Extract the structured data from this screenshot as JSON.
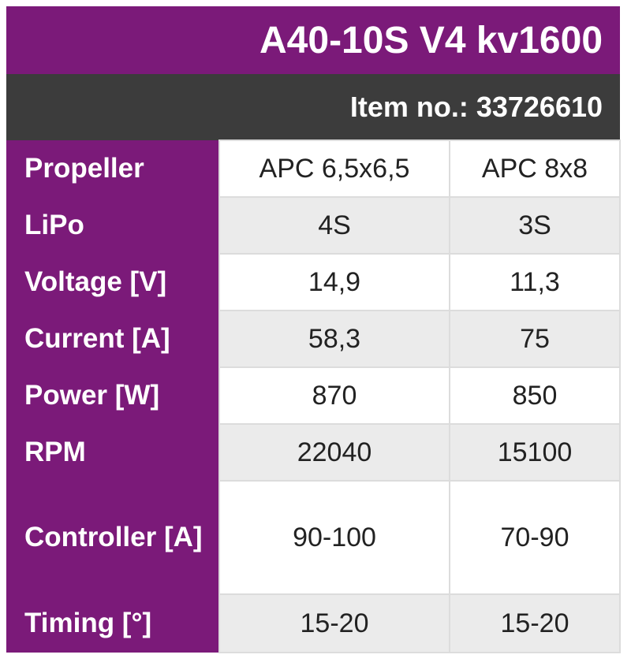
{
  "title": "A40-10S V4 kv1600",
  "item_no": "Item no.: 33726610",
  "rows": [
    {
      "label": "Propeller",
      "values": [
        "APC 6,5x6,5",
        "APC 8x8"
      ]
    },
    {
      "label": "LiPo",
      "values": [
        "4S",
        "3S"
      ]
    },
    {
      "label": "Voltage [V]",
      "values": [
        "14,9",
        "11,3"
      ]
    },
    {
      "label": "Current [A]",
      "values": [
        "58,3",
        "75"
      ]
    },
    {
      "label": "Power [W]",
      "values": [
        "870",
        "850"
      ]
    },
    {
      "label": "RPM",
      "values": [
        "22040",
        "15100"
      ]
    },
    {
      "label": "Controller [A]",
      "values": [
        "90-100",
        "70-90"
      ]
    },
    {
      "label": "Timing [°]",
      "values": [
        "15-20",
        "15-20"
      ]
    }
  ],
  "colors": {
    "header_purple": "#7b1a79",
    "item_bar": "#3c3c3c",
    "row_gray": "#ebebeb",
    "row_white": "#ffffff"
  }
}
